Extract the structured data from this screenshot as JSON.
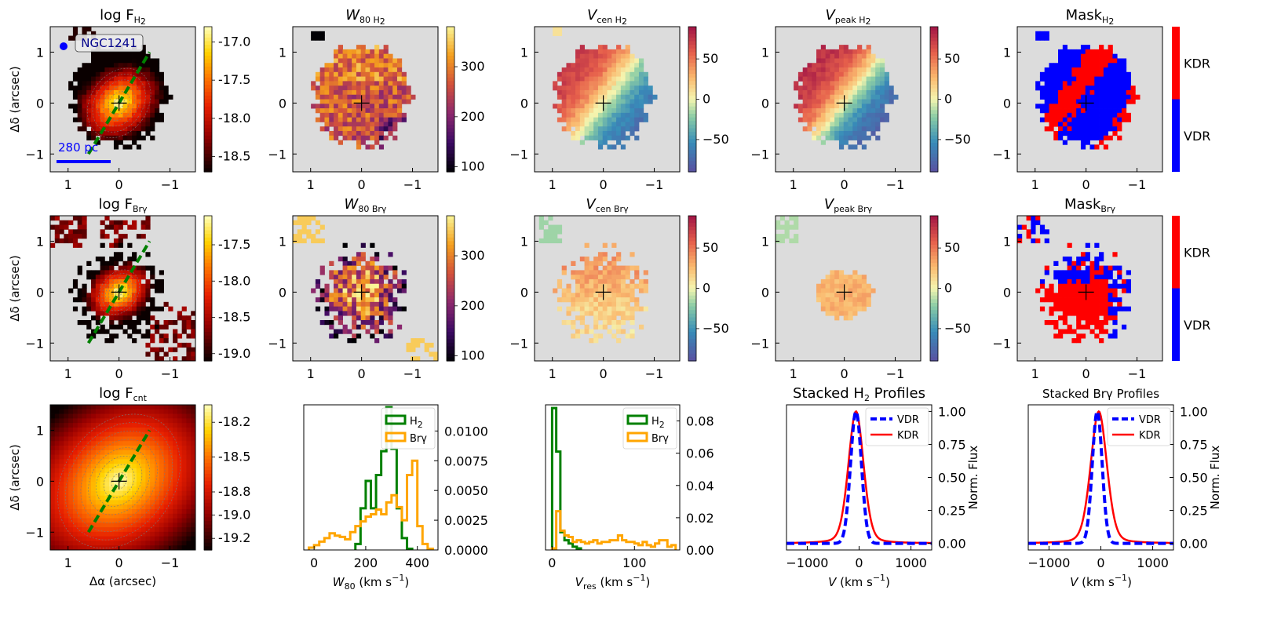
{
  "figure": {
    "galaxy_label": "NGC1241",
    "scale_bar_label": "280 pc",
    "colors": {
      "background_map": "#dcdcdc",
      "vdr": "#0000ff",
      "kdr": "#ff0000",
      "h2_hist": "#008000",
      "brg_hist": "#ffa500",
      "pa_line": "#008000",
      "scale_bar": "#0000ff"
    }
  },
  "chart_data": [
    {
      "id": "map-flux-h2",
      "type": "heatmap",
      "title": "log F",
      "title_sub": "H",
      "title_sub2": "2",
      "ylabel": "Δδ (arcsec)",
      "xlabel": "",
      "xticks": [
        "1",
        "0",
        "−1"
      ],
      "yticks": [
        "1",
        "0",
        "−1"
      ],
      "xlim": [
        1.35,
        -1.5
      ],
      "ylim": [
        -1.35,
        1.5
      ],
      "colorbar": {
        "cmap": "hot",
        "ticks": [
          "-17.0",
          "-17.5",
          "-18.0",
          "-18.5"
        ],
        "range": [
          -18.7,
          -16.8
        ]
      }
    },
    {
      "id": "map-w80-h2",
      "type": "heatmap",
      "title": "W",
      "title_sub": "80 H",
      "title_sub2": "2",
      "xticks": [
        "1",
        "0",
        "−1"
      ],
      "yticks": [
        "1",
        "0",
        "−1"
      ],
      "colorbar": {
        "cmap": "inferno",
        "ticks": [
          "300",
          "200",
          "100"
        ],
        "range": [
          90,
          380
        ]
      }
    },
    {
      "id": "map-vcen-h2",
      "type": "heatmap",
      "title": "V",
      "title_sub": "cen H",
      "title_sub2": "2",
      "xticks": [
        "1",
        "0",
        "−1"
      ],
      "yticks": [
        "1",
        "0",
        "−1"
      ],
      "colorbar": {
        "cmap": "spectral",
        "ticks": [
          "50",
          "0",
          "−50"
        ],
        "range": [
          -90,
          90
        ]
      }
    },
    {
      "id": "map-vpeak-h2",
      "type": "heatmap",
      "title": "V",
      "title_sub": "peak H",
      "title_sub2": "2",
      "xticks": [
        "1",
        "0",
        "−1"
      ],
      "yticks": [
        "1",
        "0",
        "−1"
      ],
      "colorbar": {
        "cmap": "spectral",
        "ticks": [
          "50",
          "0",
          "−50"
        ],
        "range": [
          -90,
          90
        ]
      }
    },
    {
      "id": "map-mask-h2",
      "type": "heatmap",
      "title": "Mask",
      "title_sub": "H",
      "title_sub2": "2",
      "xticks": [
        "1",
        "0",
        "−1"
      ],
      "yticks": [
        "1",
        "0",
        "−1"
      ],
      "colorbar": {
        "cmap": "mask",
        "ticks": [
          "KDR",
          "VDR"
        ]
      }
    },
    {
      "id": "map-flux-brg",
      "type": "heatmap",
      "title": "log F",
      "title_sub": "Brγ",
      "title_sub2": "",
      "ylabel": "Δδ (arcsec)",
      "xticks": [
        "1",
        "0",
        "−1"
      ],
      "yticks": [
        "1",
        "0",
        "−1"
      ],
      "colorbar": {
        "cmap": "hot",
        "ticks": [
          "-17.5",
          "-18.0",
          "-18.5",
          "-19.0"
        ],
        "range": [
          -19.1,
          -17.1
        ]
      }
    },
    {
      "id": "map-w80-brg",
      "type": "heatmap",
      "title": "W",
      "title_sub": "80 Brγ",
      "title_sub2": "",
      "xticks": [
        "1",
        "0",
        "−1"
      ],
      "yticks": [
        "1",
        "0",
        "−1"
      ],
      "colorbar": {
        "cmap": "inferno",
        "ticks": [
          "300",
          "200",
          "100"
        ],
        "range": [
          90,
          380
        ]
      }
    },
    {
      "id": "map-vcen-brg",
      "type": "heatmap",
      "title": "V",
      "title_sub": "cen Brγ",
      "title_sub2": "",
      "xticks": [
        "1",
        "0",
        "−1"
      ],
      "yticks": [
        "1",
        "0",
        "−1"
      ],
      "colorbar": {
        "cmap": "spectral",
        "ticks": [
          "50",
          "0",
          "−50"
        ],
        "range": [
          -90,
          90
        ]
      }
    },
    {
      "id": "map-vpeak-brg",
      "type": "heatmap",
      "title": "V",
      "title_sub": "peak Brγ",
      "title_sub2": "",
      "xticks": [
        "1",
        "0",
        "−1"
      ],
      "yticks": [
        "1",
        "0",
        "−1"
      ],
      "colorbar": {
        "cmap": "spectral",
        "ticks": [
          "50",
          "0",
          "−50"
        ],
        "range": [
          -90,
          90
        ]
      }
    },
    {
      "id": "map-mask-brg",
      "type": "heatmap",
      "title": "Mask",
      "title_sub": "Brγ",
      "title_sub2": "",
      "xticks": [
        "1",
        "0",
        "−1"
      ],
      "yticks": [
        "1",
        "0",
        "−1"
      ],
      "colorbar": {
        "cmap": "mask",
        "ticks": [
          "KDR",
          "VDR"
        ]
      }
    },
    {
      "id": "map-flux-cnt",
      "type": "heatmap",
      "title": "log F",
      "title_sub": "cnt",
      "title_sub2": "",
      "ylabel": "Δδ (arcsec)",
      "xlabel": "Δα (arcsec)",
      "xticks": [
        "1",
        "0",
        "−1"
      ],
      "yticks": [
        "1",
        "0",
        "−1"
      ],
      "colorbar": {
        "cmap": "hot",
        "ticks": [
          "-18.2",
          "-18.5",
          "-18.8",
          "-19.0",
          "-19.2"
        ],
        "range": [
          -19.3,
          -18.05
        ]
      }
    },
    {
      "id": "hist-w80",
      "type": "bar",
      "xlabel": "W",
      "xlabel_sub": "80",
      "xlabel_unit": " (km s",
      "xlim": [
        -40,
        480
      ],
      "ylim": [
        0,
        0.0122
      ],
      "xticks": [
        "0",
        "200",
        "400"
      ],
      "xtick_values": [
        0,
        200,
        400
      ],
      "yticks": [
        "0.0000",
        "0.0025",
        "0.0050",
        "0.0075",
        "0.0100"
      ],
      "ytick_values": [
        0,
        0.0025,
        0.005,
        0.0075,
        0.01
      ],
      "bin_width": 20,
      "series": [
        {
          "name": "H",
          "name_sub": "2",
          "color": "#008000",
          "x": [
            160,
            180,
            200,
            220,
            240,
            260,
            280,
            300,
            320,
            340,
            360
          ],
          "values": [
            0.0005,
            0.0035,
            0.0058,
            0.0035,
            0.0063,
            0.0083,
            0.012,
            0.0085,
            0.0035,
            0.001,
            0.0001
          ]
        },
        {
          "name": "Brγ",
          "name_sub": "",
          "color": "#ffa500",
          "x": [
            -20,
            0,
            20,
            40,
            60,
            80,
            100,
            120,
            140,
            160,
            180,
            200,
            220,
            240,
            260,
            280,
            300,
            320,
            340,
            360,
            380,
            400,
            420,
            440
          ],
          "values": [
            0.0002,
            0.0004,
            0.0007,
            0.001,
            0.0014,
            0.0012,
            0.0011,
            0.0009,
            0.0015,
            0.002,
            0.0024,
            0.0028,
            0.003,
            0.0034,
            0.003,
            0.004,
            0.0046,
            0.0036,
            0.0025,
            0.0063,
            0.0075,
            0.002,
            0.0005,
            0.0001
          ]
        }
      ]
    },
    {
      "id": "hist-vres",
      "type": "bar",
      "xlabel": "V",
      "xlabel_sub": "res",
      "xlabel_unit": " (km s",
      "xlim": [
        -8,
        155
      ],
      "ylim": [
        0,
        0.09
      ],
      "xticks": [
        "0",
        "100"
      ],
      "xtick_values": [
        0,
        100
      ],
      "yticks": [
        "0.00",
        "0.02",
        "0.04",
        "0.06",
        "0.08"
      ],
      "ytick_values": [
        0,
        0.02,
        0.04,
        0.06,
        0.08
      ],
      "bin_width": 5,
      "series": [
        {
          "name": "H",
          "name_sub": "2",
          "color": "#008000",
          "x": [
            0,
            5,
            10,
            15,
            20,
            25,
            30
          ],
          "values": [
            0.088,
            0.061,
            0.011,
            0.006,
            0.004,
            0.002,
            0.001
          ]
        },
        {
          "name": "Brγ",
          "name_sub": "",
          "color": "#ffa500",
          "x": [
            0,
            5,
            10,
            15,
            20,
            25,
            30,
            35,
            40,
            45,
            50,
            55,
            60,
            65,
            70,
            75,
            80,
            85,
            90,
            95,
            100,
            105,
            110,
            115,
            120,
            125,
            130,
            135,
            140,
            145
          ],
          "values": [
            0.001,
            0.024,
            0.012,
            0.009,
            0.008,
            0.005,
            0.006,
            0.005,
            0.004,
            0.005,
            0.006,
            0.004,
            0.005,
            0.005,
            0.006,
            0.006,
            0.009,
            0.006,
            0.005,
            0.005,
            0.004,
            0.003,
            0.005,
            0.003,
            0.002,
            0.004,
            0.006,
            0.006,
            0.002,
            0.003
          ]
        }
      ]
    },
    {
      "id": "profile-h2",
      "type": "line",
      "title": "Stacked H",
      "title_sub": "2",
      "title_tail": " Profiles",
      "xlabel": "V",
      "xlabel_unit": " (km s",
      "ylabel": "Norm. Flux",
      "xlim": [
        -1400,
        1400
      ],
      "ylim": [
        -0.05,
        1.05
      ],
      "xticks": [
        "−1000",
        "0",
        "1000"
      ],
      "xtick_values": [
        -1000,
        0,
        1000
      ],
      "yticks": [
        "0.00",
        "0.25",
        "0.50",
        "0.75",
        "1.00"
      ],
      "ytick_values": [
        0,
        0.25,
        0.5,
        0.75,
        1.0
      ],
      "series": [
        {
          "name": "VDR",
          "color": "#0000ff",
          "dashed": true,
          "center": -60,
          "sigma": 105,
          "shape": "gauss"
        },
        {
          "name": "KDR",
          "color": "#ff0000",
          "dashed": false,
          "center": -60,
          "sigma": 150,
          "shape": "wing"
        }
      ]
    },
    {
      "id": "profile-brg",
      "type": "line",
      "title": "Stacked Brγ Profiles",
      "title_sub": "",
      "title_tail": "",
      "xlabel": "V",
      "xlabel_unit": " (km s",
      "ylabel": "Norm. Flux",
      "xlim": [
        -1400,
        1400
      ],
      "ylim": [
        -0.05,
        1.05
      ],
      "xticks": [
        "−1000",
        "0",
        "1000"
      ],
      "xtick_values": [
        -1000,
        0,
        1000
      ],
      "yticks": [
        "0.00",
        "0.25",
        "0.50",
        "0.75",
        "1.00"
      ],
      "ytick_values": [
        0,
        0.25,
        0.5,
        0.75,
        1.0
      ],
      "series": [
        {
          "name": "VDR",
          "color": "#0000ff",
          "dashed": true,
          "center": -70,
          "sigma": 95,
          "shape": "gauss"
        },
        {
          "name": "KDR",
          "color": "#ff0000",
          "dashed": false,
          "center": -40,
          "sigma": 160,
          "shape": "wing"
        }
      ]
    }
  ]
}
